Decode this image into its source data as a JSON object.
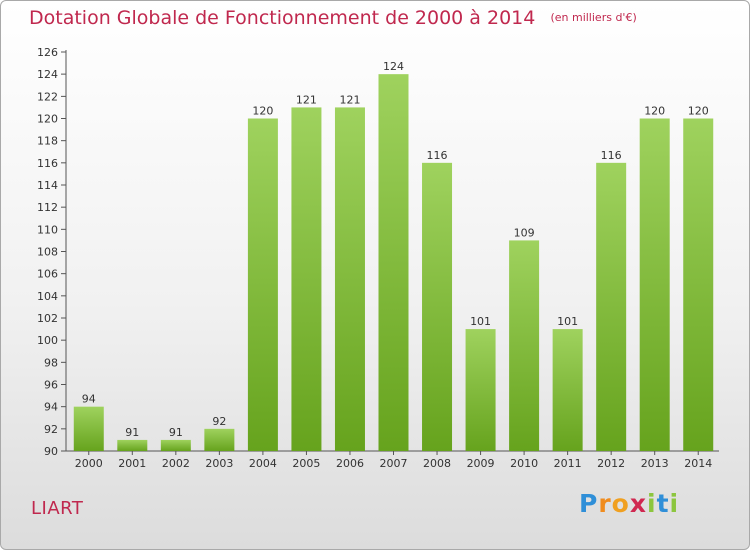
{
  "header": {
    "title": "Dotation Globale de Fonctionnement de 2000 à 2014",
    "unit": "(en milliers d'€)"
  },
  "commune": "LIART",
  "brand": {
    "letters": [
      "P",
      "r",
      "o",
      "x",
      "i",
      "t",
      "i"
    ],
    "colors": [
      "#2f8fd8",
      "#f08c1e",
      "#f0a020",
      "#d02850",
      "#8cc63e",
      "#2f8fd8",
      "#8cc63e"
    ]
  },
  "colors": {
    "bar_top": "#9fd25e",
    "bar_bottom": "#66a31d",
    "text_accent": "#c0284e"
  },
  "chart_data": {
    "type": "bar",
    "categories": [
      "2000",
      "2001",
      "2002",
      "2003",
      "2004",
      "2005",
      "2006",
      "2007",
      "2008",
      "2009",
      "2010",
      "2011",
      "2012",
      "2013",
      "2014"
    ],
    "values": [
      94,
      91,
      91,
      92,
      120,
      121,
      121,
      124,
      116,
      101,
      109,
      101,
      116,
      120,
      120
    ],
    "ylim": [
      90,
      126
    ],
    "yticks": [
      90,
      92,
      94,
      96,
      98,
      100,
      102,
      104,
      106,
      108,
      110,
      112,
      114,
      116,
      118,
      120,
      122,
      124,
      126
    ],
    "grid": false,
    "data_labels": true
  }
}
